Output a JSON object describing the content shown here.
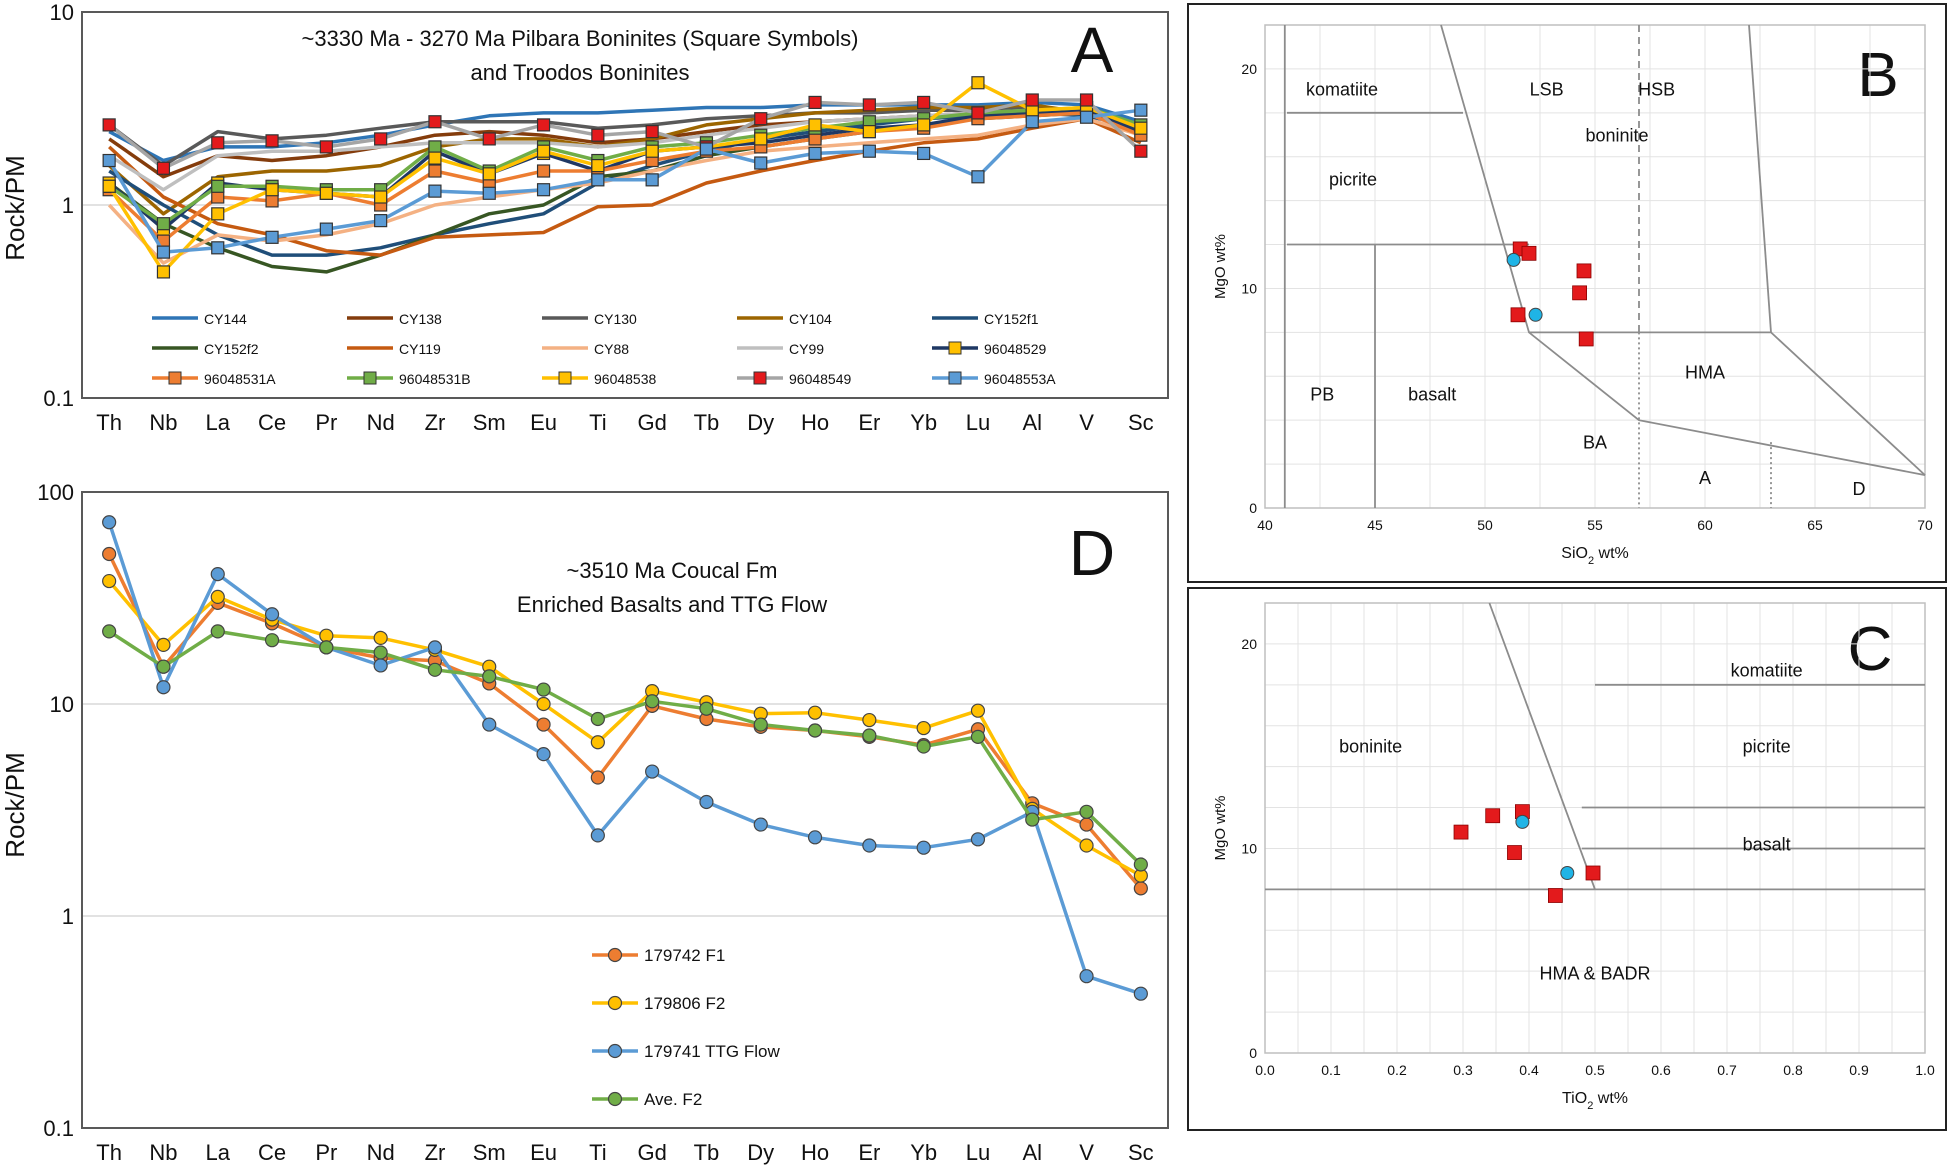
{
  "chart_data": [
    {
      "panel": "A",
      "type": "line",
      "title": "~3330 Ma - 3270 Ma Pilbara Boninites (Square Symbols)",
      "subtitle": "and Troodos Boninites",
      "ylabel": "Rock/PM",
      "yscale": "log",
      "ylim": [
        0.1,
        10
      ],
      "yticks": [
        "0.1",
        "1",
        "10"
      ],
      "categories": [
        "Th",
        "Nb",
        "La",
        "Ce",
        "Pr",
        "Nd",
        "Zr",
        "Sm",
        "Eu",
        "Ti",
        "Gd",
        "Tb",
        "Dy",
        "Ho",
        "Er",
        "Yb",
        "Lu",
        "Al",
        "V",
        "Sc"
      ],
      "series": [
        {
          "name": "CY144",
          "color": "#2e75b6",
          "marker": "none",
          "values": [
            2.4,
            1.7,
            2.0,
            2.0,
            2.1,
            2.3,
            2.6,
            2.9,
            3.0,
            3.0,
            3.1,
            3.2,
            3.2,
            3.3,
            3.3,
            3.3,
            3.3,
            3.4,
            3.3,
            2.7
          ]
        },
        {
          "name": "CY138",
          "color": "#843c0c",
          "marker": "none",
          "values": [
            2.2,
            1.4,
            1.8,
            1.7,
            1.8,
            2.0,
            2.3,
            2.4,
            2.3,
            2.1,
            2.2,
            2.4,
            2.6,
            2.7,
            2.8,
            2.9,
            3.0,
            3.1,
            3.0,
            2.4
          ]
        },
        {
          "name": "CY130",
          "color": "#595959",
          "marker": "none",
          "values": [
            2.6,
            1.6,
            2.4,
            2.2,
            2.3,
            2.5,
            2.7,
            2.7,
            2.7,
            2.5,
            2.6,
            2.8,
            2.9,
            3.0,
            3.0,
            3.1,
            3.1,
            3.2,
            3.0,
            2.3
          ]
        },
        {
          "name": "CY104",
          "color": "#9c6500",
          "marker": "none",
          "values": [
            1.6,
            0.9,
            1.4,
            1.5,
            1.5,
            1.6,
            2.0,
            2.2,
            2.2,
            2.0,
            2.2,
            2.6,
            2.8,
            3.0,
            3.1,
            3.2,
            3.2,
            3.3,
            3.0,
            2.4
          ]
        },
        {
          "name": "CY152f1",
          "color": "#1f4e79",
          "marker": "none",
          "values": [
            1.5,
            1.0,
            0.7,
            0.55,
            0.55,
            0.6,
            0.7,
            0.8,
            0.9,
            1.3,
            1.6,
            1.9,
            2.2,
            2.4,
            2.6,
            2.8,
            2.9,
            3.0,
            2.9,
            2.5
          ]
        },
        {
          "name": "CY152f2",
          "color": "#375623",
          "marker": "none",
          "values": [
            1.3,
            0.8,
            0.6,
            0.48,
            0.45,
            0.55,
            0.7,
            0.9,
            1.0,
            1.4,
            1.5,
            1.8,
            2.0,
            2.2,
            2.4,
            2.6,
            2.8,
            2.9,
            3.0,
            2.6
          ]
        },
        {
          "name": "CY119",
          "color": "#c55a11",
          "marker": "none",
          "values": [
            2.0,
            1.1,
            0.8,
            0.7,
            0.58,
            0.55,
            0.68,
            0.7,
            0.72,
            0.98,
            1.0,
            1.3,
            1.5,
            1.7,
            1.9,
            2.1,
            2.2,
            2.5,
            2.8,
            2.1
          ]
        },
        {
          "name": "CY88",
          "color": "#f4b183",
          "marker": "none",
          "values": [
            1.0,
            0.5,
            0.7,
            0.65,
            0.7,
            0.8,
            1.0,
            1.1,
            1.2,
            1.3,
            1.5,
            1.7,
            1.9,
            2.0,
            2.1,
            2.2,
            2.3,
            2.6,
            2.8,
            2.3
          ]
        },
        {
          "name": "CY99",
          "color": "#bfbfbf",
          "marker": "none",
          "values": [
            1.8,
            1.2,
            1.8,
            1.9,
            1.9,
            2.0,
            2.1,
            2.1,
            2.1,
            2.0,
            2.1,
            2.3,
            2.5,
            2.7,
            2.8,
            2.9,
            3.0,
            3.1,
            3.0,
            2.3
          ]
        },
        {
          "name": "96048529",
          "color": "#1f3864",
          "marker": "square",
          "markerColor": "#ffc000",
          "values": [
            1.3,
            0.75,
            1.3,
            1.2,
            1.15,
            1.1,
            1.9,
            1.45,
            1.85,
            1.5,
            1.9,
            2.0,
            2.1,
            2.3,
            2.5,
            2.6,
            2.9,
            3.0,
            3.1,
            2.4
          ]
        },
        {
          "name": "96048531A",
          "color": "#ed7d31",
          "marker": "square",
          "markerColor": "#ed7d31",
          "values": [
            1.2,
            0.65,
            1.1,
            1.05,
            1.15,
            1.0,
            1.5,
            1.3,
            1.5,
            1.5,
            1.7,
            1.9,
            2.0,
            2.2,
            2.4,
            2.5,
            2.8,
            2.9,
            3.0,
            2.3
          ]
        },
        {
          "name": "96048531B",
          "color": "#70ad47",
          "marker": "square",
          "markerColor": "#70ad47",
          "values": [
            1.25,
            0.8,
            1.25,
            1.25,
            1.2,
            1.2,
            2.0,
            1.5,
            2.0,
            1.7,
            2.0,
            2.1,
            2.3,
            2.5,
            2.7,
            2.8,
            3.0,
            3.1,
            3.2,
            2.6
          ]
        },
        {
          "name": "96048538",
          "color": "#ffc000",
          "marker": "square",
          "markerColor": "#ffc000",
          "values": [
            1.25,
            0.45,
            0.9,
            1.2,
            1.15,
            1.1,
            1.75,
            1.45,
            1.9,
            1.6,
            1.9,
            2.0,
            2.2,
            2.6,
            2.4,
            2.6,
            4.3,
            3.1,
            3.2,
            2.5
          ]
        },
        {
          "name": "96048549",
          "color": "#a5a5a5",
          "marker": "square",
          "markerColor": "#e31a1c",
          "values": [
            2.6,
            1.55,
            2.1,
            2.15,
            2.0,
            2.2,
            2.7,
            2.2,
            2.6,
            2.3,
            2.4,
            2.0,
            2.8,
            3.4,
            3.3,
            3.4,
            3.0,
            3.5,
            3.5,
            1.9
          ]
        },
        {
          "name": "96048553A",
          "color": "#5b9bd5",
          "marker": "square",
          "markerColor": "#5b9bd5",
          "values": [
            1.7,
            0.57,
            0.6,
            0.68,
            0.75,
            0.83,
            1.18,
            1.15,
            1.2,
            1.35,
            1.35,
            1.95,
            1.65,
            1.85,
            1.9,
            1.85,
            1.4,
            2.7,
            2.85,
            3.1
          ]
        }
      ]
    },
    {
      "panel": "D",
      "type": "line",
      "title": "~3510 Ma Coucal Fm",
      "subtitle": "Enriched Basalts and TTG Flow",
      "ylabel": "Rock/PM",
      "yscale": "log",
      "ylim": [
        0.1,
        100
      ],
      "yticks": [
        "0.1",
        "1",
        "10",
        "100"
      ],
      "categories": [
        "Th",
        "Nb",
        "La",
        "Ce",
        "Pr",
        "Nd",
        "Zr",
        "Sm",
        "Eu",
        "Ti",
        "Gd",
        "Tb",
        "Dy",
        "Ho",
        "Er",
        "Yb",
        "Lu",
        "Al",
        "V",
        "Sc"
      ],
      "series": [
        {
          "name": "179742 F1",
          "color": "#ed7d31",
          "values": [
            51,
            15,
            30,
            24,
            18.5,
            16.5,
            16,
            12.5,
            8,
            4.5,
            9.8,
            8.5,
            7.8,
            7.5,
            7,
            6.4,
            7.6,
            3.4,
            2.7,
            1.35
          ]
        },
        {
          "name": "179806 F2",
          "color": "#ffc000",
          "values": [
            38,
            19,
            32,
            25,
            21,
            20.5,
            18,
            15,
            10,
            6.6,
            11.5,
            10.2,
            9,
            9.1,
            8.4,
            7.7,
            9.3,
            3.2,
            2.15,
            1.55
          ]
        },
        {
          "name": "179741 TTG Flow",
          "color": "#5b9bd5",
          "values": [
            72,
            12,
            41,
            26.5,
            18.5,
            15.2,
            18.5,
            8,
            5.8,
            2.4,
            4.8,
            3.45,
            2.7,
            2.35,
            2.15,
            2.1,
            2.3,
            3.1,
            0.52,
            0.43
          ]
        },
        {
          "name": "Ave. F2",
          "color": "#70ad47",
          "values": [
            22,
            15,
            22,
            20,
            18.5,
            17.5,
            14.5,
            13.5,
            11.7,
            8.5,
            10.3,
            9.5,
            8,
            7.5,
            7.1,
            6.3,
            7.0,
            2.85,
            3.1,
            1.75
          ]
        }
      ]
    },
    {
      "panel": "B",
      "type": "scatter",
      "xlabel": "SiO2  wt%",
      "ylabel": "MgO  wt%",
      "xlim": [
        40,
        70
      ],
      "ylim": [
        0,
        22
      ],
      "xticks": [
        "40",
        "45",
        "50",
        "55",
        "60",
        "65",
        "70"
      ],
      "yticks": [
        "0",
        "10",
        "20"
      ],
      "field_labels": [
        "komatiite",
        "LSB",
        "HSB",
        "boninite",
        "picrite",
        "PB",
        "basalt",
        "HMA",
        "BA",
        "A",
        "D"
      ],
      "series": [
        {
          "name": "Pilbara",
          "marker": "square",
          "color": "#e31a1c",
          "points": [
            [
              51.6,
              11.8
            ],
            [
              52.0,
              11.6
            ],
            [
              54.5,
              10.8
            ],
            [
              54.3,
              9.8
            ],
            [
              51.5,
              8.8
            ],
            [
              54.6,
              7.7
            ]
          ]
        },
        {
          "name": "Troodos",
          "marker": "circle",
          "color": "#1fb4e6",
          "points": [
            [
              51.3,
              11.3
            ],
            [
              52.3,
              8.8
            ]
          ]
        }
      ]
    },
    {
      "panel": "C",
      "type": "scatter",
      "xlabel": "TiO2  wt%",
      "ylabel": "MgO wt%",
      "xlim": [
        0,
        1.0
      ],
      "ylim": [
        0,
        22
      ],
      "xticks": [
        "0.0",
        "0.1",
        "0.2",
        "0.3",
        "0.4",
        "0.5",
        "0.6",
        "0.7",
        "0.8",
        "0.9",
        "1.0"
      ],
      "yticks": [
        "0",
        "10",
        "20"
      ],
      "field_labels": [
        "komatiite",
        "boninite",
        "picrite",
        "basalt",
        "HMA & BADR"
      ],
      "series": [
        {
          "name": "Pilbara",
          "marker": "square",
          "color": "#e31a1c",
          "points": [
            [
              0.297,
              10.8
            ],
            [
              0.345,
              11.6
            ],
            [
              0.39,
              11.8
            ],
            [
              0.378,
              9.8
            ],
            [
              0.497,
              8.8
            ],
            [
              0.44,
              7.7
            ]
          ]
        },
        {
          "name": "Troodos",
          "marker": "circle",
          "color": "#1fb4e6",
          "points": [
            [
              0.39,
              11.3
            ],
            [
              0.458,
              8.8
            ]
          ]
        }
      ]
    }
  ],
  "panel_letters": {
    "a": "A",
    "b": "B",
    "c": "C",
    "d": "D"
  }
}
